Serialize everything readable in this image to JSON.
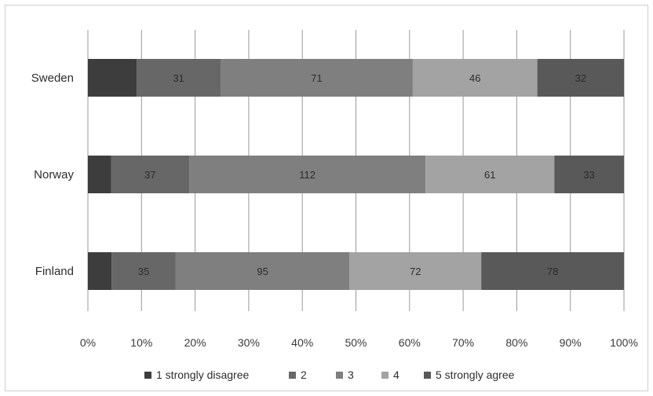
{
  "chart_data": {
    "type": "bar",
    "orientation": "horizontal",
    "stacked": "percent",
    "title": "",
    "xlabel": "",
    "ylabel": "",
    "xlim": [
      0,
      100
    ],
    "x_ticks": [
      "0%",
      "10%",
      "20%",
      "30%",
      "40%",
      "50%",
      "60%",
      "70%",
      "80%",
      "90%",
      "100%"
    ],
    "grid": true,
    "legend_position": "bottom",
    "categories": [
      "Sweden",
      "Norway",
      "Finland"
    ],
    "series": [
      {
        "name": "1 strongly disagree",
        "color": "#3d3d3d",
        "values": [
          18,
          11,
          13
        ],
        "labels": [
          "",
          "",
          ""
        ]
      },
      {
        "name": "2",
        "color": "#676767",
        "values": [
          31,
          37,
          35
        ],
        "labels": [
          "31",
          "37",
          "35"
        ]
      },
      {
        "name": "3",
        "color": "#7f7f7f",
        "values": [
          71,
          112,
          95
        ],
        "labels": [
          "71",
          "112",
          "95"
        ]
      },
      {
        "name": "4",
        "color": "#a3a3a3",
        "values": [
          46,
          61,
          72
        ],
        "labels": [
          "46",
          "61",
          "72"
        ]
      },
      {
        "name": "5 strongly agree",
        "color": "#595959",
        "values": [
          32,
          33,
          78
        ],
        "labels": [
          "32",
          "33",
          "78"
        ]
      }
    ]
  }
}
